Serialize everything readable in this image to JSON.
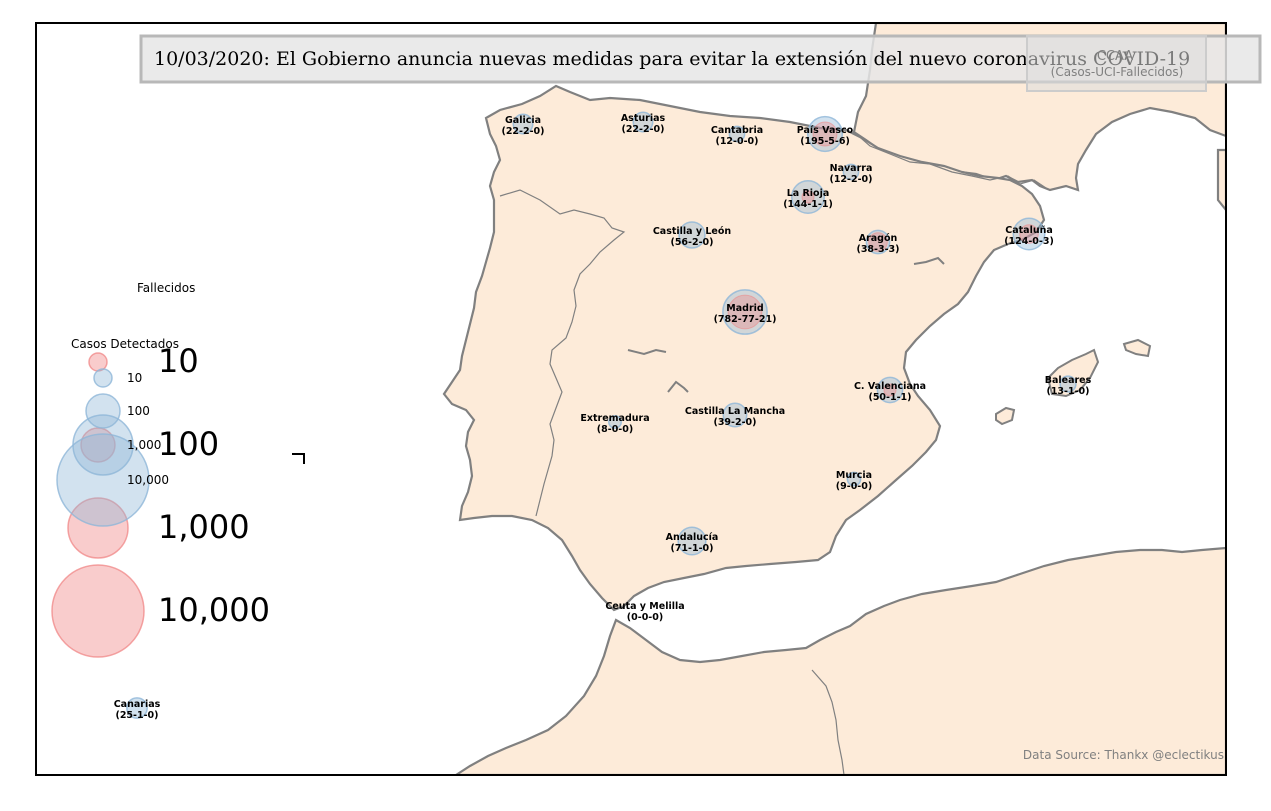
{
  "title": "10/03/2020: El Gobierno anuncia nuevas medidas para evitar la extensión del nuevo coronavirus COVID-19",
  "ccaa_box": {
    "heading": "CCAA",
    "subheading": "(Casos-UCI-Fallecidos)"
  },
  "source": "Data Source: Thankx @eclectikus",
  "legend": {
    "fallecidos_title": "Fallecidos",
    "casos_title": "Casos Detectados",
    "casos_sizes": [
      "10",
      "100",
      "1,000",
      "10,000"
    ],
    "fallecidos_sizes": [
      "10",
      "100",
      "1,000",
      "10,000"
    ]
  },
  "colors": {
    "land": "#fdebd9",
    "border": "#808080",
    "casos_bubble": "#8fb6d8",
    "fallecidos_bubble": "#f08080",
    "title_box": "#e6e6e6"
  },
  "regions": [
    {
      "name": "Galicia",
      "stats": "(22-2-0)",
      "casos": 22,
      "uci": 2,
      "fallecidos": 0
    },
    {
      "name": "Asturias",
      "stats": "(22-2-0)",
      "casos": 22,
      "uci": 2,
      "fallecidos": 0
    },
    {
      "name": "Cantabria",
      "stats": "(12-0-0)",
      "casos": 12,
      "uci": 0,
      "fallecidos": 0
    },
    {
      "name": "País Vasco",
      "stats": "(195-5-6)",
      "casos": 195,
      "uci": 5,
      "fallecidos": 6
    },
    {
      "name": "Navarra",
      "stats": "(12-2-0)",
      "casos": 12,
      "uci": 2,
      "fallecidos": 0
    },
    {
      "name": "La Rioja",
      "stats": "(144-1-1)",
      "casos": 144,
      "uci": 1,
      "fallecidos": 1
    },
    {
      "name": "Castilla y León",
      "stats": "(56-2-0)",
      "casos": 56,
      "uci": 2,
      "fallecidos": 0
    },
    {
      "name": "Aragón",
      "stats": "(38-3-3)",
      "casos": 38,
      "uci": 3,
      "fallecidos": 3
    },
    {
      "name": "Cataluña",
      "stats": "(124-0-3)",
      "casos": 124,
      "uci": 0,
      "fallecidos": 3
    },
    {
      "name": "Madrid",
      "stats": "(782-77-21)",
      "casos": 782,
      "uci": 77,
      "fallecidos": 21
    },
    {
      "name": "C. Valenciana",
      "stats": "(50-1-1)",
      "casos": 50,
      "uci": 1,
      "fallecidos": 1
    },
    {
      "name": "Baleares",
      "stats": "(13-1-0)",
      "casos": 13,
      "uci": 1,
      "fallecidos": 0
    },
    {
      "name": "Extremadura",
      "stats": "(8-0-0)",
      "casos": 8,
      "uci": 0,
      "fallecidos": 0
    },
    {
      "name": "Castilla La Mancha",
      "stats": "(39-2-0)",
      "casos": 39,
      "uci": 2,
      "fallecidos": 0
    },
    {
      "name": "Murcia",
      "stats": "(9-0-0)",
      "casos": 9,
      "uci": 0,
      "fallecidos": 0
    },
    {
      "name": "Andalucía",
      "stats": "(71-1-0)",
      "casos": 71,
      "uci": 1,
      "fallecidos": 0
    },
    {
      "name": "Ceuta y Melilla",
      "stats": "(0-0-0)",
      "casos": 0,
      "uci": 0,
      "fallecidos": 0
    },
    {
      "name": "Canarias",
      "stats": "(25-1-0)",
      "casos": 25,
      "uci": 1,
      "fallecidos": 0
    }
  ]
}
